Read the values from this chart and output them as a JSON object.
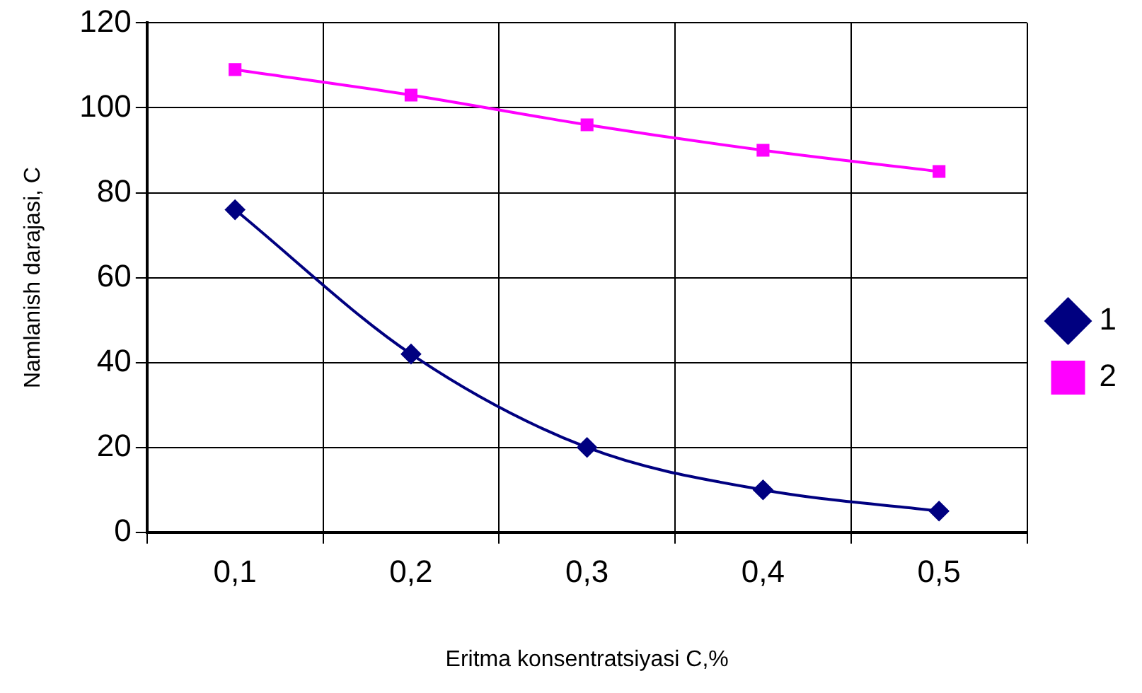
{
  "chart_data": {
    "type": "line",
    "xlabel": "Eritma konsentratsiyasi C,%",
    "ylabel": "Namlanish darajasi, C",
    "categories": [
      "0,1",
      "0,2",
      "0,3",
      "0,4",
      "0,5"
    ],
    "series": [
      {
        "name": "1",
        "color": "#000080",
        "marker": "diamond",
        "values": [
          76,
          42,
          20,
          10,
          5
        ]
      },
      {
        "name": "2",
        "color": "#ff00ff",
        "marker": "square",
        "values": [
          109,
          103,
          96,
          90,
          85
        ]
      }
    ],
    "ylim": [
      0,
      120
    ],
    "yticks": [
      0,
      20,
      40,
      60,
      80,
      100,
      120
    ],
    "grid": true,
    "legend": "right",
    "line_style": "solid"
  }
}
